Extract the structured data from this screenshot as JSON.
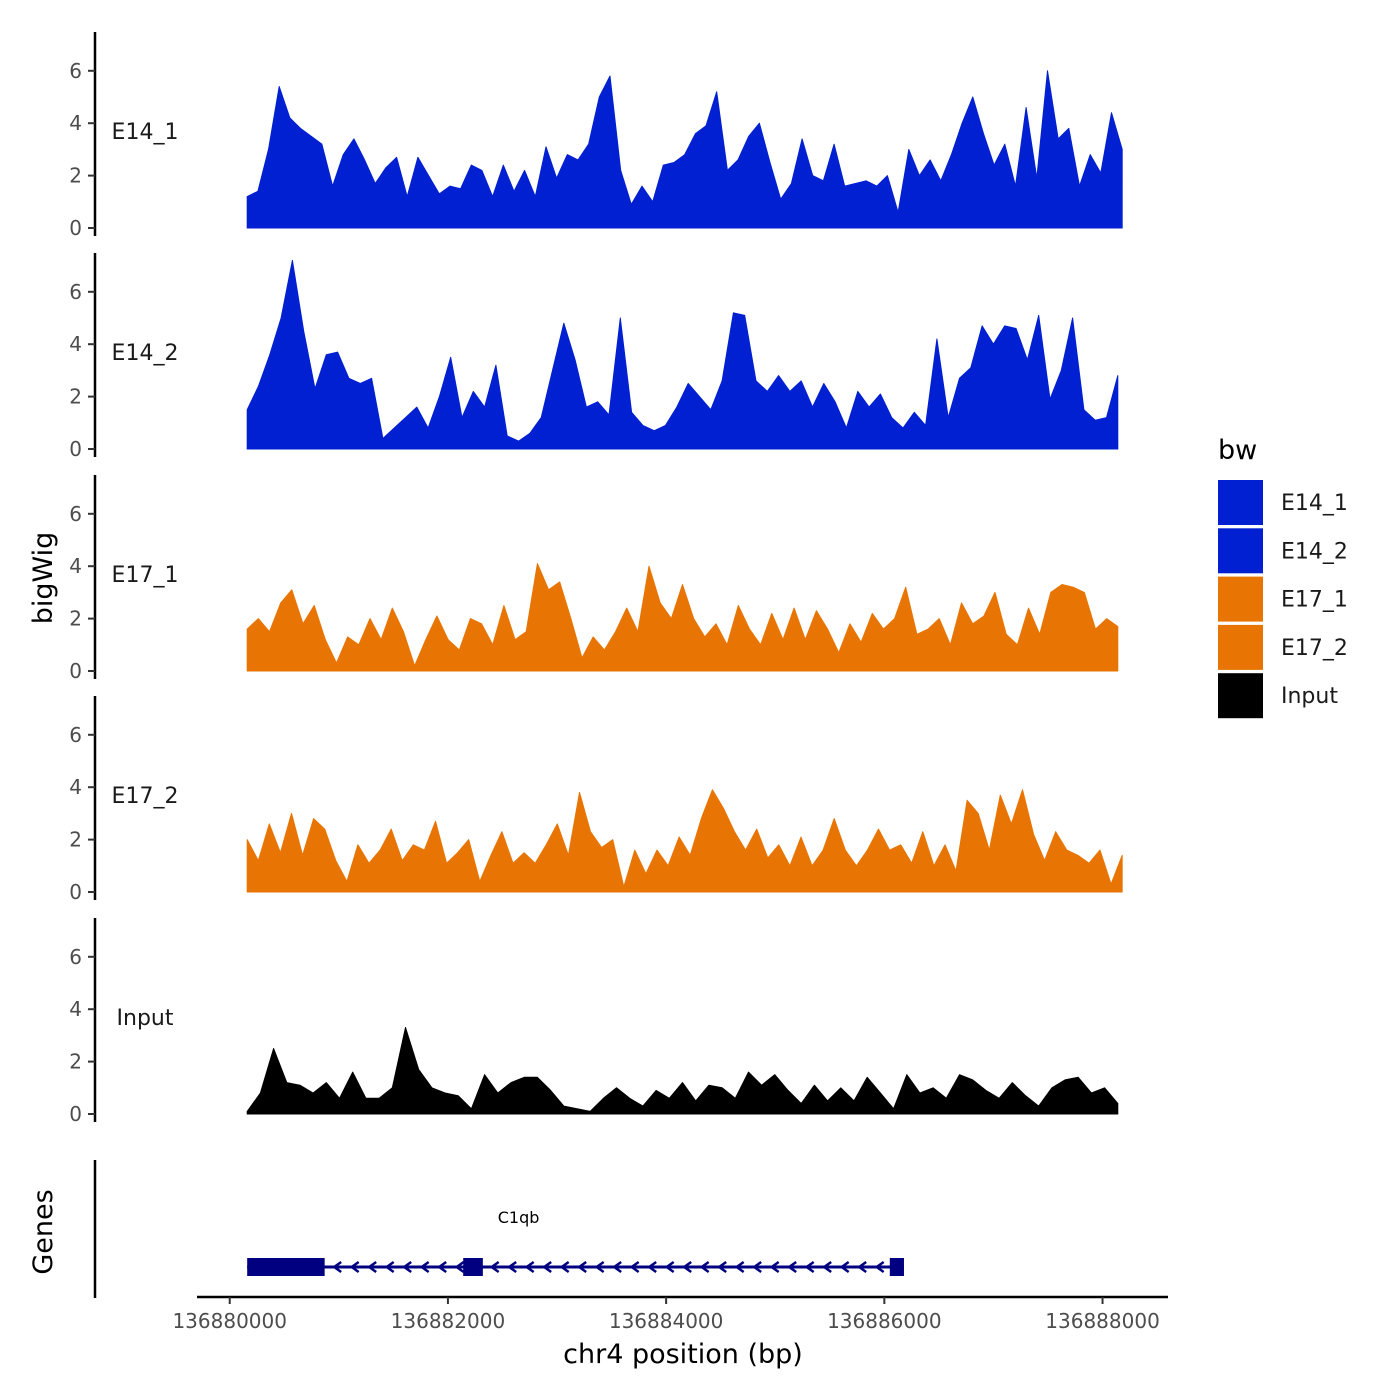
{
  "chart_data": {
    "type": "area",
    "y_axis_label": "bigWig",
    "x_axis_label": "chr4 position (bp)",
    "genes_axis_label": "Genes",
    "ylim": [
      0,
      7.5
    ],
    "y_ticks": [
      0,
      2,
      4,
      6
    ],
    "xlim": [
      136879700,
      136888600
    ],
    "x_ticks": [
      136880000,
      136882000,
      136884000,
      136886000,
      136888000
    ],
    "x_tick_labels": [
      "136880000",
      "136882000",
      "136884000",
      "136886000",
      "136888000"
    ],
    "legend": {
      "title": "bw",
      "entries": [
        {
          "label": "E14_1",
          "color": "#0020D1"
        },
        {
          "label": "E14_2",
          "color": "#0020D1"
        },
        {
          "label": "E17_1",
          "color": "#E87503"
        },
        {
          "label": "E17_2",
          "color": "#E87503"
        },
        {
          "label": "Input",
          "color": "#000000"
        }
      ]
    },
    "series": [
      {
        "name": "E14_1",
        "color": "#0020D1",
        "x_start": 136880160,
        "x_end": 136888180,
        "values": [
          1.2,
          1.4,
          3.0,
          5.4,
          4.2,
          3.8,
          3.5,
          3.2,
          1.6,
          2.8,
          3.4,
          2.6,
          1.7,
          2.3,
          2.7,
          1.2,
          2.7,
          2.0,
          1.3,
          1.6,
          1.5,
          2.4,
          2.2,
          1.2,
          2.4,
          1.4,
          2.2,
          1.2,
          3.1,
          1.9,
          2.8,
          2.6,
          3.2,
          5.0,
          5.8,
          2.2,
          0.9,
          1.6,
          1.0,
          2.4,
          2.5,
          2.8,
          3.6,
          3.9,
          5.2,
          2.2,
          2.6,
          3.5,
          4.0,
          2.5,
          1.1,
          1.7,
          3.4,
          2.0,
          1.8,
          3.2,
          1.6,
          1.7,
          1.8,
          1.6,
          2.0,
          0.6,
          3.0,
          2.0,
          2.6,
          1.8,
          2.8,
          4.0,
          5.0,
          3.6,
          2.4,
          3.2,
          1.6,
          4.6,
          1.9,
          6.0,
          3.4,
          3.8,
          1.6,
          2.8,
          2.1,
          4.4,
          3.0
        ]
      },
      {
        "name": "E14_2",
        "color": "#0020D1",
        "x_start": 136880160,
        "x_end": 136888140,
        "values": [
          1.5,
          2.4,
          3.6,
          5.0,
          7.2,
          4.5,
          2.3,
          3.6,
          3.7,
          2.7,
          2.5,
          2.7,
          0.4,
          0.8,
          1.2,
          1.6,
          0.8,
          2.0,
          3.5,
          1.2,
          2.2,
          1.6,
          3.2,
          0.5,
          0.3,
          0.6,
          1.2,
          3.0,
          4.8,
          3.4,
          1.6,
          1.8,
          1.3,
          5.0,
          1.4,
          0.9,
          0.7,
          0.9,
          1.6,
          2.5,
          2.0,
          1.5,
          2.6,
          5.2,
          5.1,
          2.6,
          2.2,
          2.8,
          2.2,
          2.6,
          1.6,
          2.5,
          1.8,
          0.8,
          2.2,
          1.6,
          2.1,
          1.2,
          0.8,
          1.4,
          0.9,
          4.2,
          1.2,
          2.7,
          3.1,
          4.7,
          4.0,
          4.7,
          4.6,
          3.4,
          5.1,
          1.9,
          3.0,
          5.0,
          1.5,
          1.1,
          1.2,
          2.8
        ]
      },
      {
        "name": "E17_1",
        "color": "#E87503",
        "x_start": 136880160,
        "x_end": 136888140,
        "values": [
          1.6,
          2.0,
          1.5,
          2.6,
          3.1,
          1.8,
          2.5,
          1.2,
          0.3,
          1.3,
          1.0,
          2.0,
          1.2,
          2.4,
          1.5,
          0.2,
          1.2,
          2.1,
          1.2,
          0.8,
          2.0,
          1.8,
          1.0,
          2.5,
          1.2,
          1.5,
          4.1,
          3.1,
          3.4,
          2.0,
          0.5,
          1.3,
          0.8,
          1.5,
          2.4,
          1.5,
          4.0,
          2.6,
          2.0,
          3.3,
          2.0,
          1.3,
          1.8,
          1.0,
          2.5,
          1.6,
          1.0,
          2.2,
          1.2,
          2.4,
          1.2,
          2.3,
          1.6,
          0.7,
          1.8,
          1.1,
          2.2,
          1.6,
          2.0,
          3.2,
          1.4,
          1.6,
          2.0,
          1.0,
          2.6,
          1.8,
          2.1,
          3.0,
          1.4,
          1.0,
          2.4,
          1.4,
          3.0,
          3.3,
          3.2,
          3.0,
          1.6,
          2.0,
          1.7
        ]
      },
      {
        "name": "E17_2",
        "color": "#E87503",
        "x_start": 136880160,
        "x_end": 136888180,
        "values": [
          2.0,
          1.2,
          2.6,
          1.5,
          3.0,
          1.4,
          2.8,
          2.4,
          1.2,
          0.4,
          1.8,
          1.1,
          1.6,
          2.4,
          1.2,
          1.8,
          1.6,
          2.7,
          1.1,
          1.5,
          2.0,
          0.4,
          1.4,
          2.3,
          1.1,
          1.5,
          1.1,
          1.8,
          2.6,
          1.4,
          3.8,
          2.3,
          1.7,
          2.0,
          0.2,
          1.6,
          0.7,
          1.6,
          1.0,
          2.1,
          1.4,
          2.8,
          3.9,
          3.2,
          2.3,
          1.6,
          2.4,
          1.3,
          1.8,
          1.0,
          2.1,
          1.0,
          1.6,
          2.8,
          1.6,
          1.0,
          1.6,
          2.4,
          1.6,
          1.8,
          1.1,
          2.3,
          1.0,
          1.8,
          0.8,
          3.5,
          3.0,
          1.6,
          3.7,
          2.6,
          3.9,
          2.2,
          1.2,
          2.3,
          1.6,
          1.4,
          1.1,
          1.6,
          0.3,
          1.4
        ]
      },
      {
        "name": "Input",
        "color": "#000000",
        "x_start": 136880160,
        "x_end": 136888140,
        "values": [
          0.1,
          0.8,
          2.5,
          1.2,
          1.1,
          0.8,
          1.2,
          0.6,
          1.6,
          0.6,
          0.6,
          1.0,
          3.3,
          1.7,
          1.0,
          0.8,
          0.7,
          0.2,
          1.5,
          0.8,
          1.2,
          1.4,
          1.4,
          0.9,
          0.3,
          0.2,
          0.1,
          0.6,
          1.0,
          0.6,
          0.3,
          0.9,
          0.6,
          1.2,
          0.5,
          1.1,
          1.0,
          0.6,
          1.6,
          1.1,
          1.5,
          0.9,
          0.4,
          1.1,
          0.5,
          1.0,
          0.5,
          1.4,
          0.8,
          0.2,
          1.5,
          0.8,
          1.0,
          0.6,
          1.5,
          1.3,
          0.9,
          0.6,
          1.2,
          0.7,
          0.3,
          1.0,
          1.3,
          1.4,
          0.8,
          1.0,
          0.4
        ]
      }
    ],
    "genes": [
      {
        "name": "C1qb",
        "strand": "-",
        "color": "#000080",
        "start": 136880160,
        "end": 136886180,
        "exons": [
          [
            136880160,
            136880870
          ],
          [
            136882140,
            136882320
          ],
          [
            136886050,
            136886180
          ]
        ]
      }
    ]
  }
}
